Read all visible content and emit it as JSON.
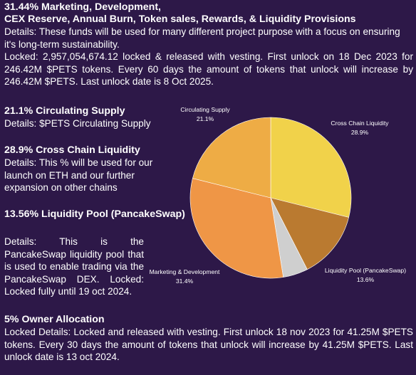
{
  "sections": {
    "top": {
      "heading_line1": "31.44% Marketing, Development,",
      "heading_line2": "CEX Reserve, Annual Burn, Token sales, Rewards, & Liquidity Provisions",
      "details": "Details: These funds will be used for many different project purpose with a focus on ensuring it's long-term sustainability.",
      "locked": "Locked: 2,957,054,674.12 locked & released with vesting. First unlock on 18 Dec 2023 for 246.42M $PETS tokens. Every 60 days the amount of tokens that unlock will increase by 246.42M $PETS. Last unlock date is 8 Oct 2025."
    },
    "circulating": {
      "heading": "21.1% Circulating Supply",
      "details": "Details: $PETS Circulating Supply"
    },
    "cross_chain": {
      "heading": "28.9% Cross Chain Liquidity",
      "details": "Details: This % will be used for our launch on ETH and our further expansion on other chains"
    },
    "liquidity_pool": {
      "heading": "13.56% Liquidity Pool (PancakeSwap)",
      "details": "Details: This is the PancakeSwap liquidity pool that is used to enable trading via the PancakeSwap DEX. Locked: Locked fully until 19 oct 2024."
    },
    "owner": {
      "heading": "5% Owner Allocation",
      "details": "Locked Details: Locked and released with vesting. First unlock 18 nov 2023 for 41.25M $PETS tokens. Every 30 days the amount of tokens that unlock will increase by 41.25M $PETS. Last unlock date is 13 oct 2024."
    }
  },
  "chart_data": {
    "type": "pie",
    "title": "",
    "slices": [
      {
        "label": "Cross Chain Liquidity",
        "value": 28.9,
        "value_label": "28.9%",
        "color": "#f1d24a",
        "show_label": true
      },
      {
        "label": "Liquidity Pool (PancakeSwap)",
        "value": 13.6,
        "value_label": "13.6%",
        "color": "#ba7a30",
        "show_label": true
      },
      {
        "label": "Owner Allocation",
        "value": 5.0,
        "value_label": "",
        "color": "#cfcfcf",
        "show_label": false
      },
      {
        "label": "Marketing & Development",
        "value": 31.4,
        "value_label": "31.4%",
        "color": "#ef9646",
        "show_label": true
      },
      {
        "label": "Circulating Supply",
        "value": 21.1,
        "value_label": "21.1%",
        "color": "#eeac45",
        "show_label": true
      }
    ]
  }
}
